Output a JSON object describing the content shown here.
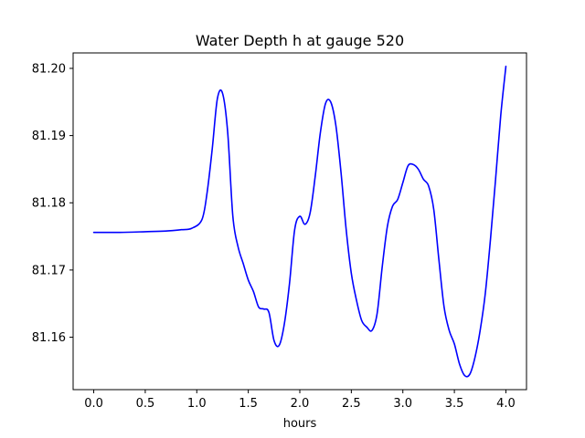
{
  "chart_data": {
    "type": "line",
    "title": "Water Depth h at gauge 520",
    "xlabel": "hours",
    "ylabel": "",
    "xlim": [
      -0.2,
      4.2
    ],
    "ylim": [
      81.1522,
      81.2023
    ],
    "xticks": [
      0.0,
      0.5,
      1.0,
      1.5,
      2.0,
      2.5,
      3.0,
      3.5,
      4.0
    ],
    "xtick_labels": [
      "0.0",
      "0.5",
      "1.0",
      "1.5",
      "2.0",
      "2.5",
      "3.0",
      "3.5",
      "4.0"
    ],
    "yticks": [
      81.16,
      81.17,
      81.18,
      81.19,
      81.2
    ],
    "ytick_labels": [
      "81.16",
      "81.17",
      "81.18",
      "81.19",
      "81.20"
    ],
    "grid": false,
    "legend": "none",
    "series": [
      {
        "color": "#0000ff",
        "x": [
          0.0,
          0.25,
          0.5,
          0.7,
          0.85,
          0.95,
          1.05,
          1.1,
          1.15,
          1.2,
          1.25,
          1.3,
          1.35,
          1.4,
          1.45,
          1.5,
          1.55,
          1.6,
          1.65,
          1.7,
          1.75,
          1.8,
          1.85,
          1.9,
          1.95,
          2.0,
          2.05,
          2.1,
          2.15,
          2.2,
          2.25,
          2.3,
          2.35,
          2.4,
          2.45,
          2.5,
          2.55,
          2.6,
          2.65,
          2.7,
          2.75,
          2.8,
          2.85,
          2.9,
          2.95,
          3.0,
          3.05,
          3.1,
          3.15,
          3.2,
          3.25,
          3.3,
          3.35,
          3.4,
          3.45,
          3.5,
          3.55,
          3.6,
          3.65,
          3.7,
          3.75,
          3.8,
          3.85,
          3.9,
          3.95,
          4.0
        ],
        "y": [
          81.1756,
          81.1756,
          81.1757,
          81.1758,
          81.176,
          81.1762,
          81.1775,
          81.1815,
          81.188,
          81.1955,
          81.1963,
          81.1905,
          81.178,
          81.1735,
          81.171,
          81.1685,
          81.1668,
          81.1645,
          81.1642,
          81.1637,
          81.1595,
          81.1588,
          81.162,
          81.168,
          81.176,
          81.178,
          81.1768,
          81.1785,
          81.184,
          81.1905,
          81.1948,
          81.195,
          81.1915,
          81.1845,
          81.176,
          81.1695,
          81.1655,
          81.1625,
          81.1615,
          81.161,
          81.1635,
          81.1705,
          81.1765,
          81.1795,
          81.1805,
          81.183,
          81.1855,
          81.1857,
          81.185,
          81.1835,
          81.1825,
          81.179,
          81.1715,
          81.1645,
          81.161,
          81.159,
          81.156,
          81.1543,
          81.1545,
          81.157,
          81.161,
          81.1665,
          81.1745,
          81.1835,
          81.193,
          81.2003
        ]
      }
    ]
  }
}
